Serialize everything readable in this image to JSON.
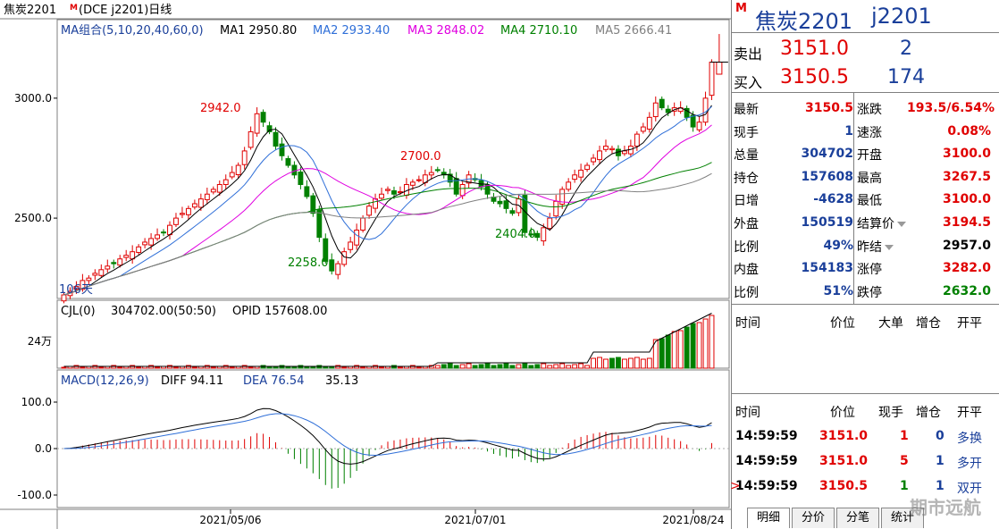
{
  "header": {
    "chart_title": "焦炭2201",
    "chart_title_sup": "M",
    "chart_subtitle": "(DCE  j2201)日线",
    "ma_label": "MA组合(5,10,20,40,60,0)",
    "ma": [
      {
        "label": "MA1 2950.80",
        "color": "#000000"
      },
      {
        "label": "MA2 2933.40",
        "color": "#2f6fd8"
      },
      {
        "label": "MA3 2848.02",
        "color": "#e000e0"
      },
      {
        "label": "MA4 2710.10",
        "color": "#008000"
      },
      {
        "label": "MA5 2666.41",
        "color": "#808080"
      }
    ],
    "vol_label": "CJL(0)",
    "vol_values": "304702.00(50:50)",
    "opid": "OPID 157608.00",
    "macd_label": "MACD(12,26,9)",
    "diff": "DIFF 94.11",
    "dea": "DEA 76.54",
    "macd_val": "35.13"
  },
  "axes": {
    "price_ticks": [
      "3000.0",
      "2500.0"
    ],
    "vol_tick": "24万",
    "macd_ticks": [
      "100.0",
      "0.0",
      "-100.0"
    ],
    "dates": [
      "2021/05/06",
      "2021/07/01",
      "2021/08/24"
    ],
    "days_label": "106天"
  },
  "annotations": [
    "2942.0",
    "2700.0",
    "2258.0",
    "2404.0"
  ],
  "colors": {
    "up": "#e00000",
    "down": "#008000",
    "accent": "#1a3f9a"
  },
  "chart_data": {
    "type": "candlestick",
    "ylim": [
      2180,
      3290
    ],
    "closes": [
      2180,
      2195,
      2215,
      2240,
      2250,
      2270,
      2285,
      2300,
      2310,
      2330,
      2345,
      2360,
      2380,
      2400,
      2415,
      2430,
      2440,
      2470,
      2500,
      2520,
      2540,
      2560,
      2580,
      2600,
      2620,
      2640,
      2660,
      2690,
      2720,
      2780,
      2860,
      2935,
      2900,
      2860,
      2800,
      2760,
      2720,
      2680,
      2640,
      2590,
      2520,
      2420,
      2320,
      2280,
      2310,
      2360,
      2400,
      2450,
      2500,
      2550,
      2580,
      2600,
      2620,
      2600,
      2610,
      2640,
      2650,
      2660,
      2680,
      2690,
      2700,
      2680,
      2650,
      2600,
      2640,
      2680,
      2660,
      2630,
      2600,
      2570,
      2560,
      2540,
      2520,
      2580,
      2440,
      2430,
      2420,
      2460,
      2500,
      2570,
      2620,
      2650,
      2680,
      2700,
      2720,
      2750,
      2780,
      2800,
      2790,
      2760,
      2780,
      2800,
      2850,
      2880,
      2920,
      2980,
      2960,
      2940,
      2960,
      2960,
      2920,
      2880,
      2900,
      3000,
      3150
    ]
  },
  "quote": {
    "m": "M",
    "name": "焦炭2201",
    "code": "j2201",
    "sell_label": "卖出",
    "sell_price": "3151.0",
    "sell_vol": "2",
    "buy_label": "买入",
    "buy_price": "3150.5",
    "buy_vol": "174"
  },
  "stats": [
    {
      "l1": "最新",
      "v1": "3150.5",
      "c1": "red",
      "l2": "涨跌",
      "v2": "193.5/6.54%",
      "c2": "red"
    },
    {
      "l1": "现手",
      "v1": "1",
      "c1": "blue",
      "l2": "速涨",
      "v2": "0.08%",
      "c2": "red"
    },
    {
      "l1": "总量",
      "v1": "304702",
      "c1": "blue",
      "l2": "开盘",
      "v2": "3100.0",
      "c2": "red"
    },
    {
      "l1": "持仓",
      "v1": "157608",
      "c1": "blue",
      "l2": "最高",
      "v2": "3267.5",
      "c2": "red"
    },
    {
      "l1": "日增",
      "v1": "-4628",
      "c1": "blue",
      "l2": "最低",
      "v2": "3100.0",
      "c2": "red"
    },
    {
      "l1": "外盘",
      "v1": "150519",
      "c1": "blue",
      "l2": "结算价",
      "v2": "3194.5",
      "c2": "red"
    },
    {
      "l1": "比例",
      "v1": "49%",
      "c1": "blue",
      "l2": "昨结",
      "v2": "2957.0",
      "c2": "blk"
    },
    {
      "l1": "内盘",
      "v1": "154183",
      "c1": "blue",
      "l2": "涨停",
      "v2": "3282.0",
      "c2": "red"
    },
    {
      "l1": "比例",
      "v1": "51%",
      "c1": "blue",
      "l2": "跌停",
      "v2": "2632.0",
      "c2": "green"
    }
  ],
  "bigorder_head": [
    "时间",
    "价位",
    "大单",
    "增仓",
    "开平"
  ],
  "trade_head": [
    "时间",
    "价位",
    "现手",
    "增仓",
    "开平"
  ],
  "trades": [
    {
      "t": "14:59:59",
      "p": "3151.0",
      "v": "1",
      "z": "0",
      "k": "多换",
      "mark": ""
    },
    {
      "t": "14:59:59",
      "p": "3151.0",
      "v": "5",
      "z": "1",
      "k": "多开",
      "mark": ""
    },
    {
      "t": "14:59:59",
      "p": "3150.5",
      "v": "1",
      "z": "1",
      "k": "双开",
      "mark": ">"
    }
  ],
  "tabs": [
    "明细",
    "分价",
    "分笔",
    "统计"
  ],
  "watermark": "期市远航"
}
